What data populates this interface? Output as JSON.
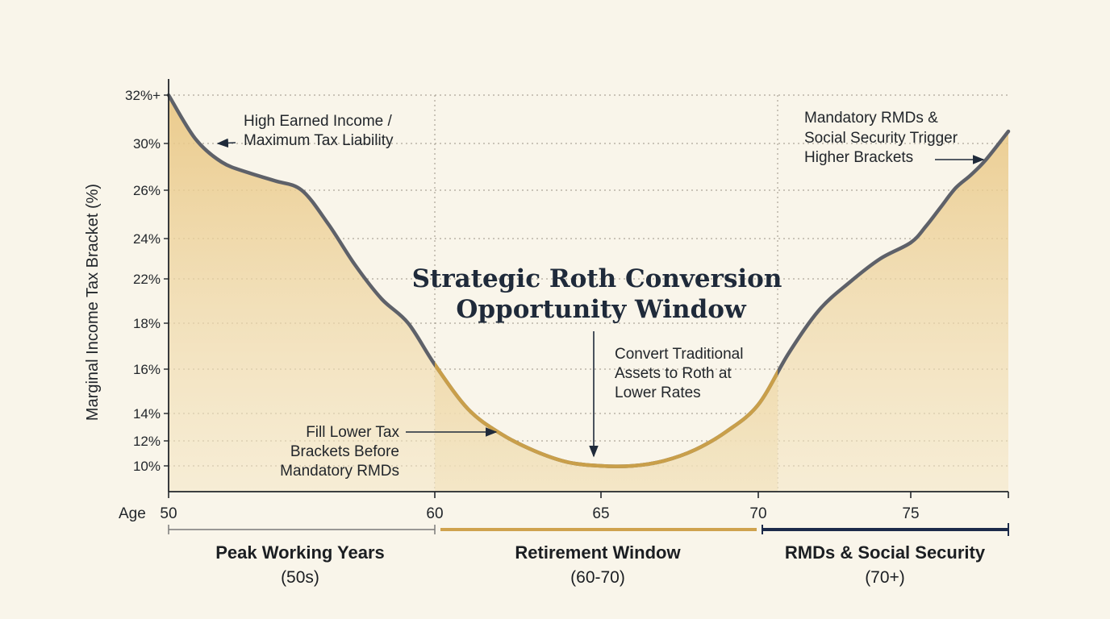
{
  "chart_data": {
    "type": "area",
    "title_lines": [
      "Strategic Roth Conversion",
      "Opportunity Window"
    ],
    "ylabel": "Marginal Income Tax Bracket (%)",
    "xlabel": "Age",
    "y_ticks": [
      {
        "value": 10,
        "label": "10%"
      },
      {
        "value": 12,
        "label": "12%"
      },
      {
        "value": 14,
        "label": "14%"
      },
      {
        "value": 16,
        "label": "16%"
      },
      {
        "value": 18,
        "label": "18%"
      },
      {
        "value": 22,
        "label": "22%"
      },
      {
        "value": 24,
        "label": "24%"
      },
      {
        "value": 26,
        "label": "26%"
      },
      {
        "value": 30,
        "label": "30%"
      },
      {
        "value": 32,
        "label": "32%+"
      }
    ],
    "x_ticks": [
      {
        "value": 50,
        "label": "50"
      },
      {
        "value": 60,
        "label": "60"
      },
      {
        "value": 65,
        "label": "65"
      },
      {
        "value": 70,
        "label": "70"
      },
      {
        "value": 75,
        "label": "75"
      }
    ],
    "xlim": [
      50,
      81.5
    ],
    "ylim": [
      9,
      33
    ],
    "series": [
      {
        "x": [
          50,
          51,
          52,
          53,
          54,
          55,
          56,
          57,
          58,
          59,
          60,
          61,
          62,
          63,
          64,
          65,
          66,
          67,
          68,
          69,
          70,
          71,
          72,
          73,
          74,
          75,
          76,
          77,
          78,
          79,
          80,
          81.5
        ],
        "y": [
          32,
          30.2,
          28.4,
          27.5,
          26.8,
          26,
          24.6,
          22.7,
          20.2,
          18,
          16.2,
          14.2,
          12.5,
          11.2,
          10.3,
          10,
          10,
          10.4,
          11.3,
          12.7,
          14.4,
          16.7,
          19.2,
          21.7,
          23,
          23.8,
          24.5,
          25.3,
          26.2,
          27.3,
          28.6,
          30.5
        ]
      }
    ],
    "highlight_window": [
      60,
      70.8
    ],
    "phases": [
      {
        "title": "Peak Working Years",
        "subtitle": "(50s)",
        "x_start": 50,
        "x_end": 60,
        "color": "#7a7a7a"
      },
      {
        "title": "Retirement Window",
        "subtitle": "(60-70)",
        "x_start": 60,
        "x_end": 70,
        "color": "#cfa24e"
      },
      {
        "title": "RMDs & Social Security",
        "subtitle": "(70+)",
        "x_start": 70,
        "x_end": 81.5,
        "color": "#1c2a4a"
      }
    ],
    "annotations": [
      {
        "lines": [
          "High Earned Income /",
          "Maximum Tax Liability"
        ]
      },
      {
        "lines": [
          "Mandatory RMDs &",
          "Social Security Trigger",
          "Higher Brackets"
        ]
      },
      {
        "lines": [
          "Convert Traditional",
          "Assets to Roth at",
          "Lower Rates"
        ]
      },
      {
        "lines": [
          "Fill Lower Tax",
          "Brackets Before",
          "Mandatory RMDs"
        ]
      }
    ],
    "colors": {
      "line": "#5e6169",
      "line_window": "#c99f4a",
      "fill": "#e9cc8b",
      "arrow": "#1f2a3a",
      "grid": "#9a9486"
    },
    "grid": "dotted"
  }
}
